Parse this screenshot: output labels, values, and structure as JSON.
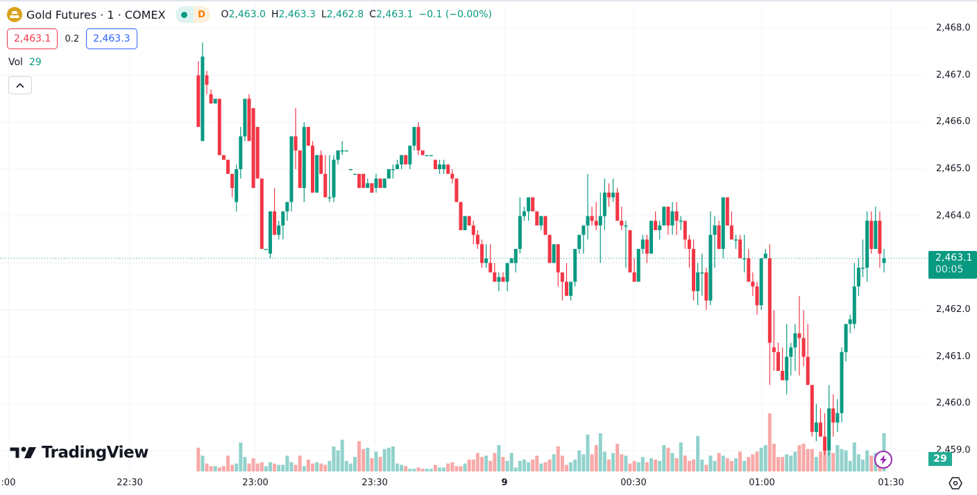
{
  "header": {
    "symbol": "Gold Futures · 1 · COMEX",
    "status_live": "live",
    "status_delay": "D",
    "ohlc": [
      {
        "key": "O",
        "value": "2,463.0"
      },
      {
        "key": "H",
        "value": "2,463.3"
      },
      {
        "key": "L",
        "value": "2,462.8"
      },
      {
        "key": "C",
        "value": "2,463.1"
      }
    ],
    "change": "−0.1 (−0.00%)"
  },
  "trade": {
    "sell_price": "2,463.1",
    "spread": "0.2",
    "buy_price": "2,463.3"
  },
  "volume_legend": {
    "label": "Vol",
    "value": "29"
  },
  "price_axis": {
    "labels": [
      "2,468.0",
      "2,467.0",
      "2,466.0",
      "2,465.0",
      "2,464.0",
      "2,463.0",
      "2,462.0",
      "2,461.0",
      "2,460.0",
      "2,459.0"
    ],
    "last_price": "2,463.1",
    "countdown": "00:05",
    "volume_tag": "29"
  },
  "time_axis": {
    "labels": [
      {
        "text": ":00",
        "x": 12,
        "bold": false
      },
      {
        "text": "22:30",
        "x": 187,
        "bold": false
      },
      {
        "text": "23:00",
        "x": 368,
        "bold": false
      },
      {
        "text": "23:30",
        "x": 540,
        "bold": false
      },
      {
        "text": "9",
        "x": 727,
        "bold": true
      },
      {
        "text": "00:30",
        "x": 913,
        "bold": false
      },
      {
        "text": "01:00",
        "x": 1098,
        "bold": false
      },
      {
        "text": "01:30",
        "x": 1284,
        "bold": false
      }
    ]
  },
  "branding": {
    "logo_text": "TradingView"
  },
  "colors": {
    "up": "#089981",
    "down": "#f23645",
    "vol_up": "#92d2cc",
    "vol_down": "#f7a9a7",
    "grid": "#f0f3fa",
    "last_price_line": "#089981"
  },
  "chart_data": {
    "type": "candlestick",
    "title": "Gold Futures · 1 · COMEX",
    "interval": "1 minute",
    "xlabel": "Time",
    "ylabel": "Price",
    "ylim": [
      2458.6,
      2468.4
    ],
    "y_ticks": [
      2468,
      2467,
      2466,
      2465,
      2464,
      2463,
      2462,
      2461,
      2460,
      2459
    ],
    "x_ticks": [
      ":00",
      "22:30",
      "23:00",
      "23:30",
      "9",
      "00:30",
      "01:00",
      "01:30"
    ],
    "grid": true,
    "last_price": 2463.1,
    "candle_fields": [
      "open",
      "high",
      "low",
      "close",
      "volume"
    ],
    "candles": [
      [
        2467.0,
        2467.3,
        2465.9,
        2465.9,
        18
      ],
      [
        2465.6,
        2467.7,
        2465.6,
        2467.4,
        12
      ],
      [
        2467.0,
        2467.1,
        2466.6,
        2466.8,
        6
      ],
      [
        2466.6,
        2466.7,
        2466.4,
        2466.4,
        4
      ],
      [
        2466.4,
        2466.5,
        2466.4,
        2466.5,
        4
      ],
      [
        2466.5,
        2466.5,
        2465.3,
        2465.3,
        3
      ],
      [
        2465.3,
        2465.3,
        2465.2,
        2465.2,
        4
      ],
      [
        2465.2,
        2465.2,
        2464.9,
        2464.9,
        12
      ],
      [
        2464.9,
        2464.9,
        2464.4,
        2464.6,
        5
      ],
      [
        2464.3,
        2465.1,
        2464.1,
        2465.0,
        6
      ],
      [
        2465.0,
        2465.9,
        2464.8,
        2465.7,
        22
      ],
      [
        2465.7,
        2466.5,
        2465.6,
        2466.5,
        11
      ],
      [
        2466.5,
        2466.6,
        2465.7,
        2465.6,
        6
      ],
      [
        2466.3,
        2466.2,
        2464.6,
        2464.6,
        10
      ],
      [
        2465.9,
        2465.9,
        2464.8,
        2464.8,
        6
      ],
      [
        2464.8,
        2464.8,
        2463.3,
        2463.3,
        7
      ],
      [
        2463.3,
        2463.3,
        2463.3,
        2463.3,
        4
      ],
      [
        2463.2,
        2464.1,
        2463.1,
        2464.1,
        7
      ],
      [
        2464.1,
        2464.6,
        2463.6,
        2463.6,
        6
      ],
      [
        2463.6,
        2463.9,
        2463.5,
        2463.8,
        5
      ],
      [
        2463.8,
        2464.1,
        2463.5,
        2464.1,
        5
      ],
      [
        2464.1,
        2464.3,
        2463.9,
        2464.3,
        12
      ],
      [
        2464.3,
        2465.7,
        2464.1,
        2465.7,
        7
      ],
      [
        2465.7,
        2466.3,
        2465.0,
        2465.4,
        5
      ],
      [
        2465.4,
        2465.4,
        2464.6,
        2464.6,
        12
      ],
      [
        2464.6,
        2466.0,
        2464.3,
        2465.9,
        4
      ],
      [
        2465.9,
        2465.9,
        2465.5,
        2465.5,
        9
      ],
      [
        2465.5,
        2465.6,
        2464.5,
        2464.5,
        6
      ],
      [
        2464.5,
        2465.3,
        2464.5,
        2465.3,
        7
      ],
      [
        2465.3,
        2465.4,
        2464.9,
        2464.9,
        6
      ],
      [
        2464.9,
        2465.3,
        2464.4,
        2464.4,
        5
      ],
      [
        2464.4,
        2465.3,
        2464.3,
        2464.4,
        8
      ],
      [
        2464.4,
        2465.3,
        2464.3,
        2465.2,
        19
      ],
      [
        2465.2,
        2465.4,
        2465.1,
        2465.4,
        16
      ],
      [
        2465.4,
        2465.6,
        2465.3,
        2465.4,
        24
      ],
      [
        2465.4,
        2465.4,
        2465.4,
        2465.4,
        8
      ],
      [
        2465.0,
        2465.0,
        2465.0,
        2465.0,
        6
      ],
      [
        2464.9,
        2464.9,
        2464.9,
        2464.9,
        11
      ],
      [
        2464.9,
        2464.9,
        2464.6,
        2464.6,
        23
      ],
      [
        2464.9,
        2464.9,
        2464.6,
        2464.6,
        17
      ],
      [
        2464.6,
        2464.8,
        2464.6,
        2464.7,
        18
      ],
      [
        2464.7,
        2464.7,
        2464.5,
        2464.5,
        10
      ],
      [
        2464.6,
        2464.9,
        2464.5,
        2464.8,
        15
      ],
      [
        2464.8,
        2464.8,
        2464.6,
        2464.6,
        11
      ],
      [
        2464.6,
        2464.8,
        2464.6,
        2464.8,
        17
      ],
      [
        2464.8,
        2465.0,
        2464.8,
        2465.0,
        18
      ],
      [
        2465.0,
        2465.1,
        2464.8,
        2465.0,
        19
      ],
      [
        2465.0,
        2465.2,
        2465.0,
        2465.1,
        6
      ],
      [
        2465.1,
        2465.3,
        2465.0,
        2465.3,
        5
      ],
      [
        2465.3,
        2465.3,
        2465.1,
        2465.1,
        4
      ],
      [
        2465.1,
        2465.5,
        2465.0,
        2465.5,
        2
      ],
      [
        2465.5,
        2465.9,
        2465.4,
        2465.9,
        2
      ],
      [
        2465.9,
        2466.0,
        2465.3,
        2465.4,
        3
      ],
      [
        2465.4,
        2465.4,
        2465.3,
        2465.3,
        2
      ],
      [
        2465.3,
        2465.3,
        2465.3,
        2465.3,
        2
      ],
      [
        2465.3,
        2465.3,
        2465.3,
        2465.3,
        2
      ],
      [
        2465.2,
        2465.2,
        2465.0,
        2465.0,
        5
      ],
      [
        2465.0,
        2465.2,
        2464.9,
        2465.1,
        3
      ],
      [
        2465.0,
        2465.2,
        2464.9,
        2465.1,
        3
      ],
      [
        2465.1,
        2465.1,
        2464.9,
        2464.9,
        6
      ],
      [
        2464.9,
        2465.0,
        2464.7,
        2464.8,
        7
      ],
      [
        2464.8,
        2464.8,
        2464.3,
        2464.3,
        4
      ],
      [
        2464.3,
        2464.3,
        2463.7,
        2463.7,
        4
      ],
      [
        2463.7,
        2464.0,
        2463.7,
        2464.0,
        6
      ],
      [
        2464.0,
        2464.0,
        2463.8,
        2463.8,
        9
      ],
      [
        2463.8,
        2463.9,
        2463.4,
        2463.6,
        9
      ],
      [
        2463.6,
        2463.7,
        2463.3,
        2463.4,
        14
      ],
      [
        2463.4,
        2463.5,
        2462.9,
        2463.0,
        11
      ],
      [
        2463.0,
        2463.4,
        2462.9,
        2463.1,
        12
      ],
      [
        2463.0,
        2463.4,
        2462.8,
        2462.8,
        8
      ],
      [
        2462.8,
        2463.0,
        2462.6,
        2462.6,
        14
      ],
      [
        2462.6,
        2462.8,
        2462.4,
        2462.7,
        20
      ],
      [
        2462.7,
        2462.8,
        2462.6,
        2462.6,
        11
      ],
      [
        2462.6,
        2462.9,
        2462.4,
        2463.0,
        8
      ],
      [
        2463.0,
        2463.1,
        2463.0,
        2463.1,
        14
      ],
      [
        2463.0,
        2463.3,
        2462.8,
        2463.3,
        3
      ],
      [
        2463.3,
        2464.4,
        2463.2,
        2464.0,
        8
      ],
      [
        2464.0,
        2464.2,
        2463.9,
        2464.1,
        9
      ],
      [
        2464.1,
        2464.4,
        2463.9,
        2464.4,
        7
      ],
      [
        2464.4,
        2464.4,
        2464.1,
        2464.1,
        9
      ],
      [
        2464.1,
        2464.1,
        2463.9,
        2463.8,
        12
      ],
      [
        2463.8,
        2464.0,
        2463.7,
        2464.0,
        6
      ],
      [
        2464.0,
        2464.0,
        2463.6,
        2463.6,
        7
      ],
      [
        2463.6,
        2463.6,
        2463.0,
        2463.0,
        9
      ],
      [
        2463.0,
        2463.4,
        2463.0,
        2463.4,
        13
      ],
      [
        2463.4,
        2463.4,
        2462.5,
        2462.8,
        19
      ],
      [
        2462.8,
        2462.8,
        2462.2,
        2462.6,
        12
      ],
      [
        2462.6,
        2463.0,
        2462.3,
        2462.3,
        5
      ],
      [
        2462.3,
        2462.6,
        2462.2,
        2462.6,
        7
      ],
      [
        2462.6,
        2463.3,
        2462.5,
        2463.3,
        9
      ],
      [
        2463.3,
        2463.6,
        2463.2,
        2463.6,
        16
      ],
      [
        2463.6,
        2463.7,
        2463.2,
        2463.8,
        13
      ],
      [
        2463.8,
        2464.9,
        2463.5,
        2464.0,
        28
      ],
      [
        2464.0,
        2464.2,
        2463.8,
        2463.9,
        13
      ],
      [
        2463.9,
        2464.3,
        2463.7,
        2463.8,
        20
      ],
      [
        2463.8,
        2464.5,
        2463.0,
        2464.0,
        29
      ],
      [
        2464.0,
        2464.8,
        2463.7,
        2464.5,
        15
      ],
      [
        2464.5,
        2464.7,
        2464.2,
        2464.4,
        9
      ],
      [
        2464.4,
        2464.8,
        2464.3,
        2464.5,
        14
      ],
      [
        2464.5,
        2464.6,
        2464.0,
        2463.9,
        21
      ],
      [
        2463.9,
        2464.2,
        2463.7,
        2463.8,
        13
      ],
      [
        2463.8,
        2463.9,
        2462.9,
        2463.8,
        12
      ],
      [
        2463.7,
        2463.7,
        2462.8,
        2462.8,
        6
      ],
      [
        2462.8,
        2463.1,
        2462.6,
        2462.6,
        8
      ],
      [
        2462.6,
        2463.3,
        2462.6,
        2463.3,
        7
      ],
      [
        2463.3,
        2463.6,
        2463.2,
        2463.5,
        11
      ],
      [
        2463.5,
        2463.6,
        2463.0,
        2463.2,
        7
      ],
      [
        2463.2,
        2463.9,
        2463.2,
        2463.9,
        10
      ],
      [
        2463.9,
        2464.1,
        2463.7,
        2463.7,
        9
      ],
      [
        2463.7,
        2463.9,
        2463.5,
        2463.8,
        8
      ],
      [
        2463.8,
        2464.0,
        2463.8,
        2464.2,
        20
      ],
      [
        2464.2,
        2464.2,
        2463.6,
        2463.8,
        18
      ],
      [
        2463.8,
        2464.3,
        2463.6,
        2464.1,
        14
      ],
      [
        2464.1,
        2464.3,
        2463.6,
        2463.9,
        10
      ],
      [
        2463.9,
        2464.0,
        2463.7,
        2463.9,
        22
      ],
      [
        2463.9,
        2463.9,
        2463.3,
        2463.5,
        12
      ],
      [
        2463.5,
        2463.6,
        2462.9,
        2463.3,
        8
      ],
      [
        2463.3,
        2463.5,
        2462.2,
        2462.4,
        9
      ],
      [
        2462.4,
        2463.0,
        2462.1,
        2462.8,
        27
      ],
      [
        2462.8,
        2463.2,
        2462.3,
        2462.8,
        9
      ],
      [
        2462.8,
        2462.9,
        2462.0,
        2462.2,
        5
      ],
      [
        2462.2,
        2464.1,
        2462.1,
        2463.6,
        12
      ],
      [
        2463.6,
        2464.0,
        2462.9,
        2463.8,
        8
      ],
      [
        2463.8,
        2463.9,
        2463.5,
        2463.3,
        14
      ],
      [
        2463.3,
        2464.4,
        2463.1,
        2464.4,
        12
      ],
      [
        2464.4,
        2464.4,
        2463.8,
        2463.8,
        10
      ],
      [
        2463.8,
        2464.1,
        2463.5,
        2463.5,
        8
      ],
      [
        2463.5,
        2463.6,
        2463.3,
        2463.5,
        10
      ],
      [
        2463.5,
        2463.6,
        2463.1,
        2463.1,
        15
      ],
      [
        2463.1,
        2463.6,
        2462.8,
        2463.1,
        8
      ],
      [
        2463.1,
        2463.3,
        2462.6,
        2462.6,
        11
      ],
      [
        2462.6,
        2462.8,
        2462.3,
        2462.5,
        13
      ],
      [
        2462.5,
        2462.6,
        2461.9,
        2462.1,
        15
      ],
      [
        2462.1,
        2463.1,
        2462.0,
        2463.1,
        18
      ],
      [
        2463.1,
        2463.3,
        2463.1,
        2463.2,
        20
      ],
      [
        2463.1,
        2463.4,
        2460.4,
        2461.3,
        44
      ],
      [
        2461.2,
        2462.0,
        2460.7,
        2461.1,
        21
      ],
      [
        2461.1,
        2461.3,
        2460.7,
        2460.7,
        11
      ],
      [
        2460.7,
        2461.2,
        2460.5,
        2460.5,
        11
      ],
      [
        2460.5,
        2461.7,
        2460.2,
        2461.0,
        13
      ],
      [
        2461.0,
        2461.3,
        2460.6,
        2461.2,
        12
      ],
      [
        2461.2,
        2461.7,
        2460.7,
        2461.5,
        15
      ],
      [
        2461.5,
        2462.3,
        2460.6,
        2461.4,
        20
      ],
      [
        2461.4,
        2462.0,
        2460.8,
        2461.0,
        21
      ],
      [
        2461.0,
        2461.7,
        2460.4,
        2460.4,
        17
      ],
      [
        2460.4,
        2460.4,
        2459.3,
        2459.4,
        17
      ],
      [
        2459.4,
        2460.0,
        2459.2,
        2459.6,
        11
      ],
      [
        2459.6,
        2459.9,
        2459.3,
        2459.3,
        15
      ],
      [
        2459.3,
        2459.8,
        2458.9,
        2459.0,
        18
      ],
      [
        2459.0,
        2460.4,
        2458.9,
        2459.9,
        15
      ],
      [
        2459.9,
        2460.2,
        2459.3,
        2459.6,
        14
      ],
      [
        2459.6,
        2460.1,
        2459.4,
        2459.8,
        20
      ],
      [
        2459.8,
        2461.2,
        2459.6,
        2461.1,
        17
      ],
      [
        2461.1,
        2461.6,
        2460.9,
        2461.7,
        16
      ],
      [
        2461.7,
        2461.9,
        2461.5,
        2461.8,
        8
      ],
      [
        2461.7,
        2463.0,
        2461.6,
        2462.5,
        22
      ],
      [
        2462.5,
        2463.1,
        2462.3,
        2462.9,
        13
      ],
      [
        2462.9,
        2463.5,
        2462.7,
        2462.9,
        9
      ],
      [
        2462.9,
        2464.1,
        2462.6,
        2463.9,
        16
      ],
      [
        2463.9,
        2464.1,
        2463.2,
        2463.3,
        12
      ],
      [
        2463.3,
        2464.2,
        2463.3,
        2463.9,
        14
      ],
      [
        2463.9,
        2464.1,
        2462.9,
        2463.2,
        8
      ],
      [
        2463.0,
        2463.3,
        2462.8,
        2463.1,
        29
      ]
    ]
  }
}
